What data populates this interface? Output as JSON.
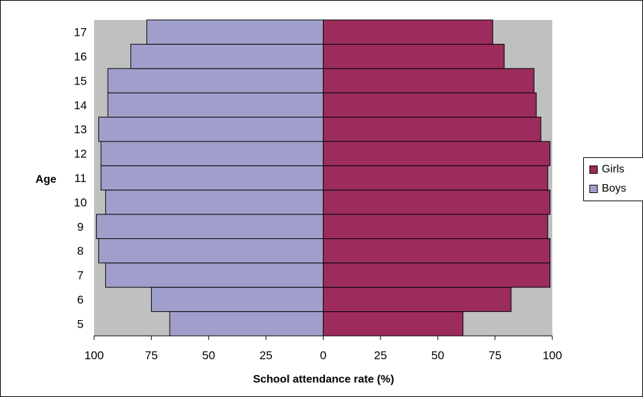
{
  "chart_data": {
    "type": "bar",
    "orientation": "horizontal",
    "layout": "population-pyramid",
    "title": "",
    "xlabel": "School attendance rate (%)",
    "ylabel": "Age",
    "categories": [
      "5",
      "6",
      "7",
      "8",
      "9",
      "10",
      "11",
      "12",
      "13",
      "14",
      "15",
      "16",
      "17"
    ],
    "series": [
      {
        "name": "Girls",
        "side": "right",
        "color": "#9B2C5C",
        "values": [
          61,
          82,
          99,
          99,
          98,
          99,
          98,
          99,
          95,
          93,
          92,
          79,
          74
        ]
      },
      {
        "name": "Boys",
        "side": "left",
        "color": "#A09FCB",
        "values": [
          67,
          75,
          95,
          98,
          99,
          95,
          97,
          97,
          98,
          94,
          94,
          84,
          77
        ]
      }
    ],
    "xlim": [
      -100,
      100
    ],
    "x_tick_values": [
      -100,
      -75,
      -50,
      -25,
      0,
      25,
      50,
      75,
      100
    ],
    "x_tick_labels": [
      "100",
      "75",
      "50",
      "25",
      "0",
      "25",
      "50",
      "75",
      "100"
    ],
    "plot_background": "#C0C0C0",
    "grid": false,
    "legend_position": "right"
  }
}
